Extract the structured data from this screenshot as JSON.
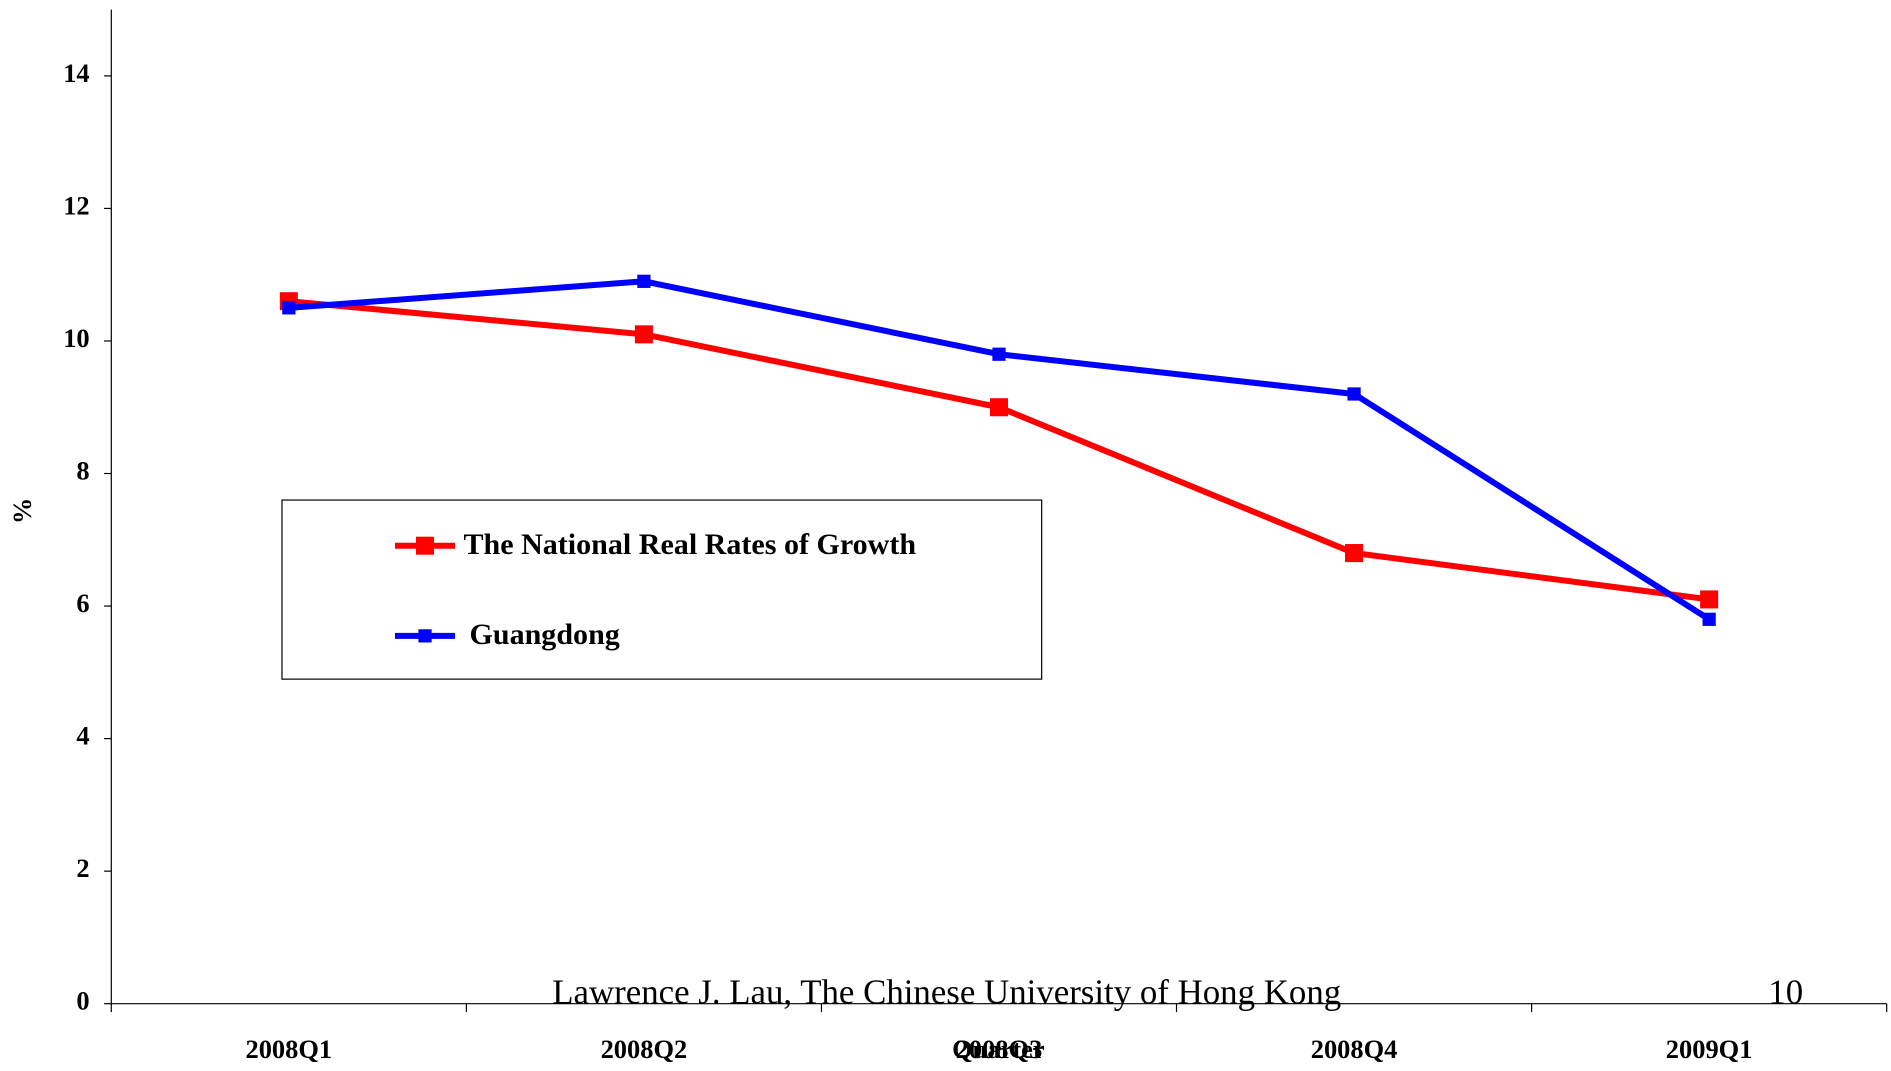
{
  "chart_data": {
    "type": "line",
    "categories": [
      "2008Q1",
      "2008Q2",
      "2008Q3",
      "2008Q4",
      "2009Q1"
    ],
    "series": [
      {
        "name": "The National Real Rates of Growth",
        "color": "#ff0000",
        "values": [
          10.6,
          10.1,
          9.0,
          6.8,
          6.1
        ]
      },
      {
        "name": "Guangdong",
        "color": "#0000ff",
        "values": [
          10.5,
          10.9,
          9.8,
          9.2,
          5.8
        ]
      }
    ],
    "ylim": [
      0,
      15
    ],
    "yticks": [
      0,
      2,
      4,
      6,
      8,
      10,
      12,
      14
    ],
    "ylabel": "%",
    "xlabel": "Quarter",
    "footer": "Lawrence J. Lau, The Chinese University of Hong Kong",
    "page_number": "10"
  }
}
